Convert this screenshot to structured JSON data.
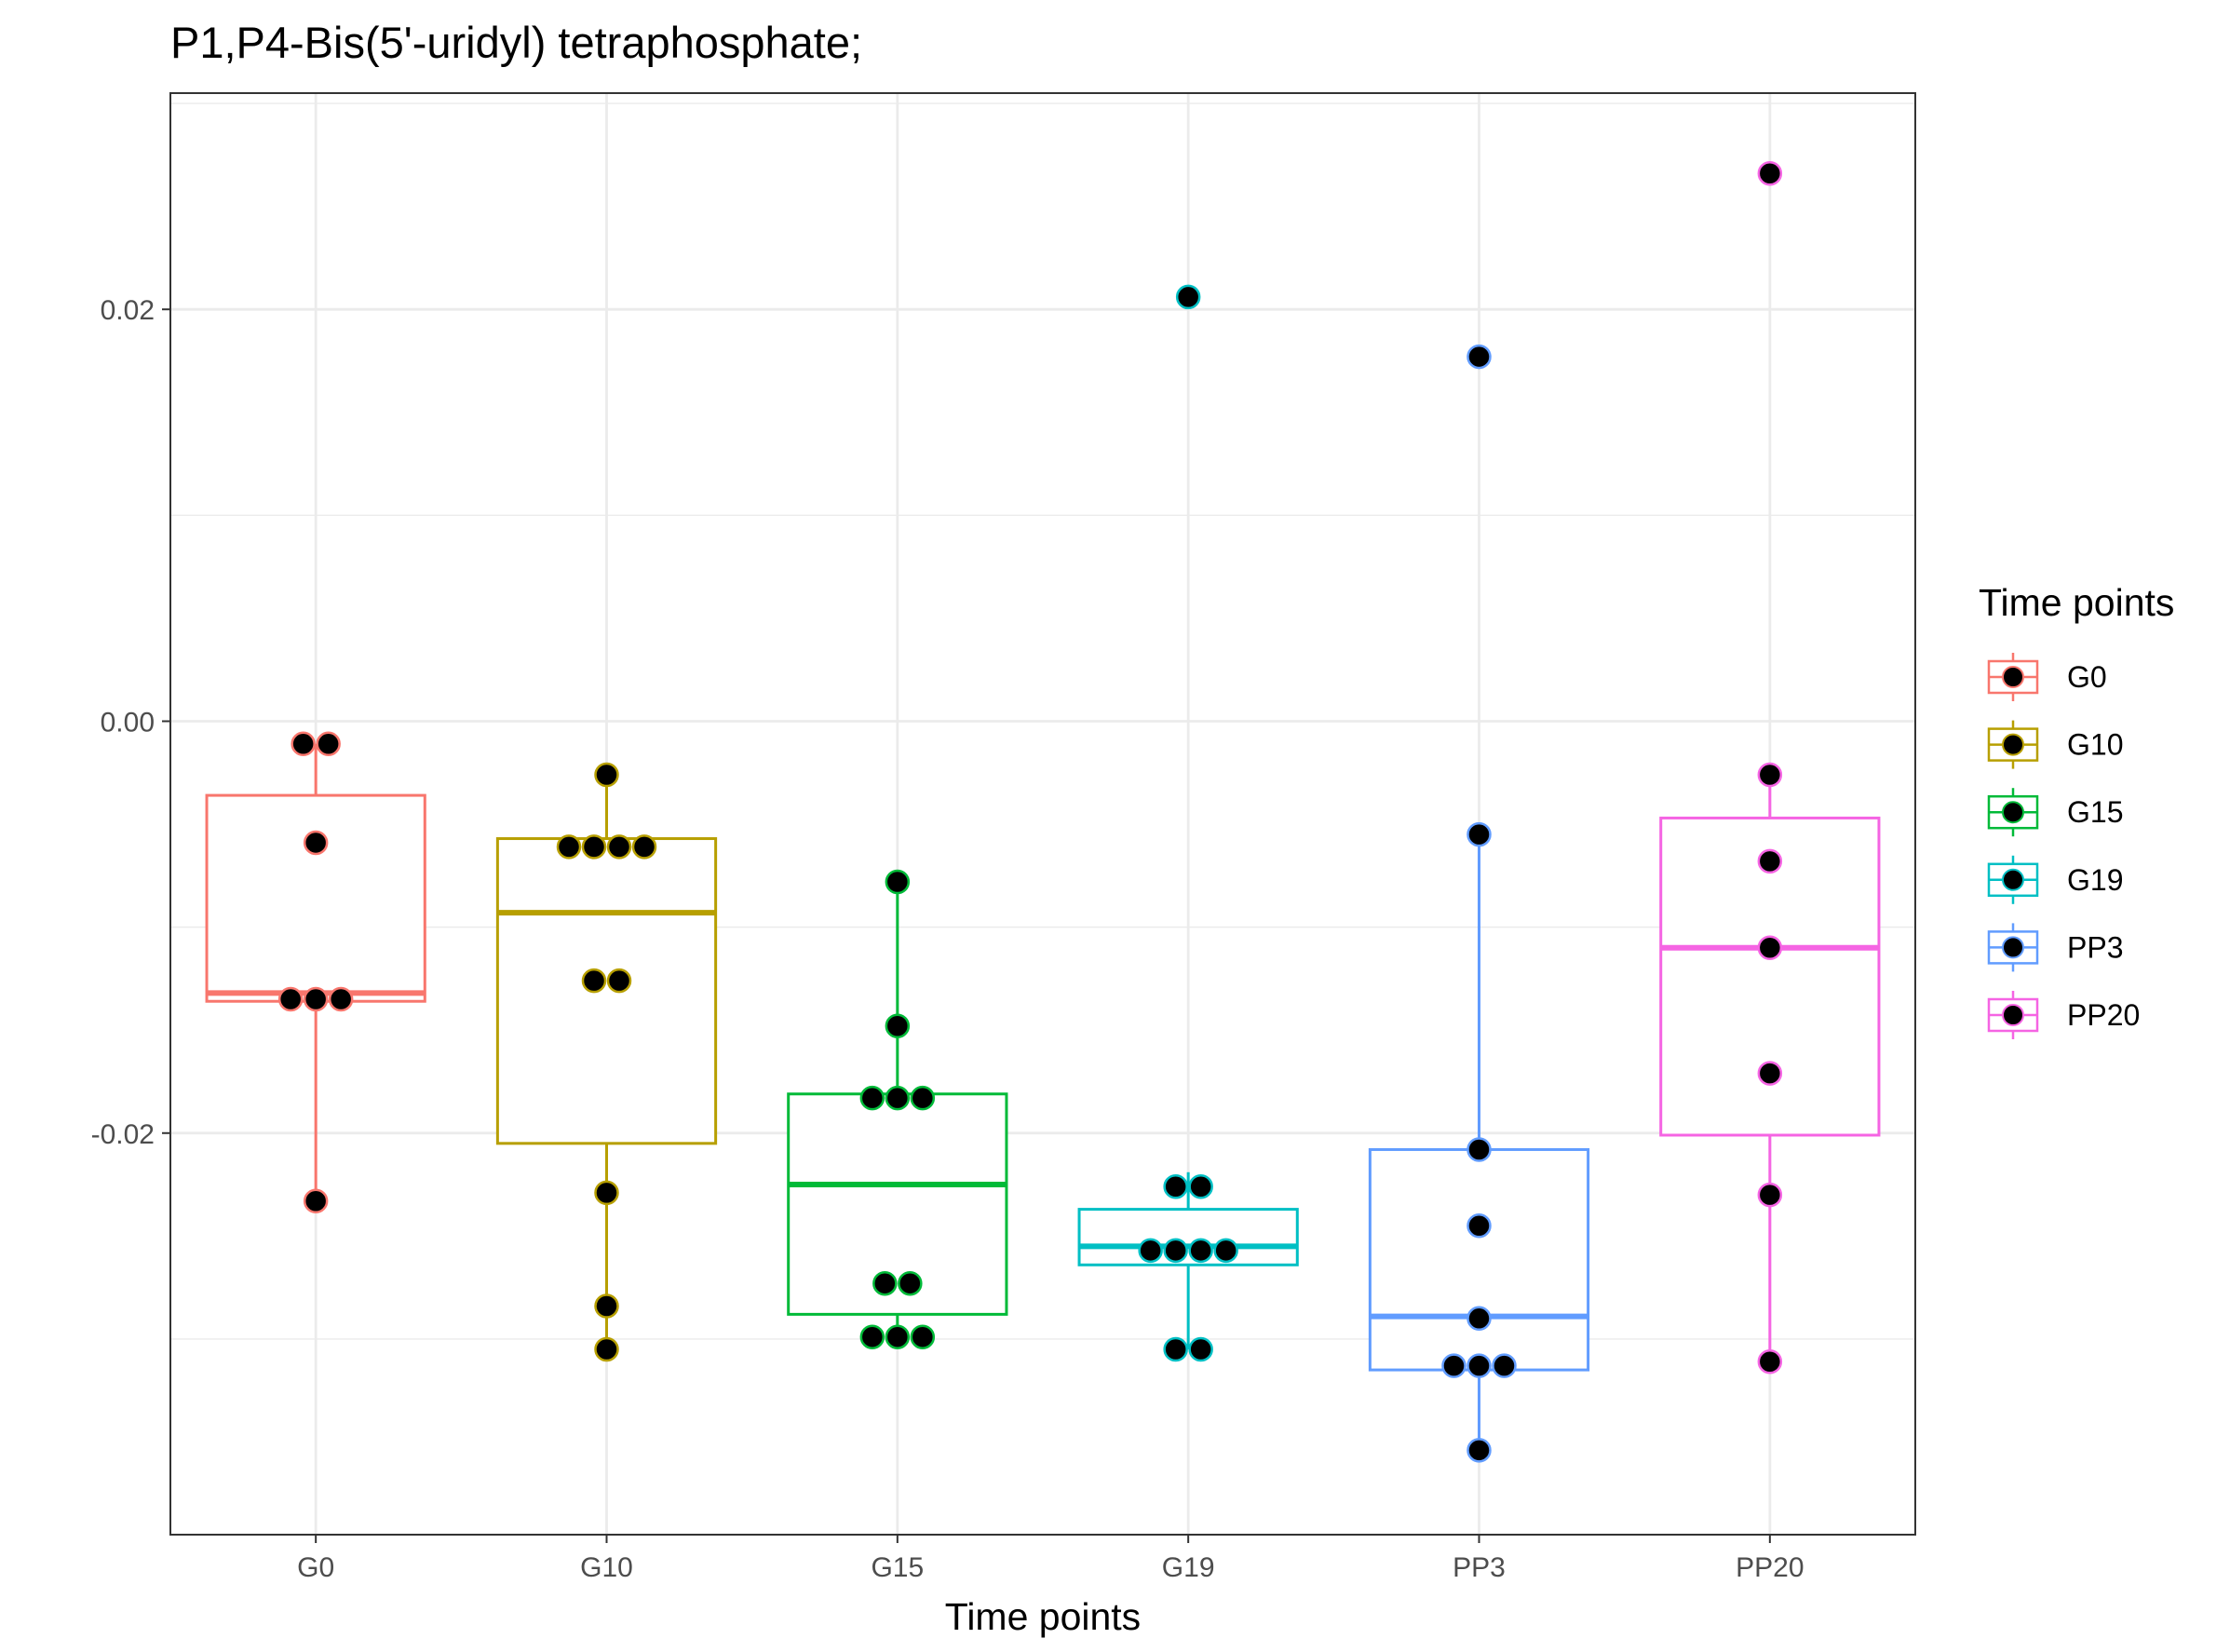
{
  "chart_data": {
    "type": "boxplot",
    "title": "P1,P4-Bis(5'-uridyl) tetraphosphate;",
    "xlabel": "Time points",
    "ylabel": "",
    "ylim": [
      -0.0395,
      0.0305
    ],
    "yticks": [
      -0.02,
      0.0,
      0.02
    ],
    "ytick_labels": [
      "-0.02",
      "0.00",
      "0.02"
    ],
    "grid": true,
    "legend": {
      "title": "Time points",
      "position": "right",
      "entries": [
        "G0",
        "G10",
        "G15",
        "G19",
        "PP3",
        "PP20"
      ]
    },
    "categories": [
      "G0",
      "G10",
      "G15",
      "G19",
      "PP3",
      "PP20"
    ],
    "colors": {
      "G0": "#F8766D",
      "G10": "#B79F00",
      "G15": "#00BA38",
      "G19": "#00BFC4",
      "PP3": "#619CFF",
      "PP20": "#F564E3"
    },
    "point_fill": "#000000",
    "series": [
      {
        "name": "G0",
        "box": {
          "whisker_low": -0.0233,
          "q1": -0.0136,
          "median": -0.0132,
          "q3": -0.0036,
          "whisker_high": -0.0011
        },
        "points": [
          -0.0011,
          -0.0011,
          -0.0059,
          -0.0135,
          -0.0135,
          -0.0135,
          -0.0233
        ]
      },
      {
        "name": "G10",
        "box": {
          "whisker_low": -0.0305,
          "q1": -0.0205,
          "median": -0.0093,
          "q3": -0.0057,
          "whisker_high": -0.0026
        },
        "points": [
          -0.0026,
          -0.0061,
          -0.0061,
          -0.0061,
          -0.0061,
          -0.0126,
          -0.0126,
          -0.0229,
          -0.0284,
          -0.0305
        ]
      },
      {
        "name": "G15",
        "box": {
          "whisker_low": -0.03,
          "q1": -0.0288,
          "median": -0.0225,
          "q3": -0.0181,
          "whisker_high": -0.0078
        },
        "points": [
          -0.0078,
          -0.0148,
          -0.0183,
          -0.0183,
          -0.0183,
          -0.0273,
          -0.0273,
          -0.0299,
          -0.0299,
          -0.0299
        ]
      },
      {
        "name": "G19",
        "box": {
          "whisker_low": -0.0305,
          "q1": -0.0264,
          "median": -0.0255,
          "q3": -0.0237,
          "whisker_high": -0.0219
        },
        "points": [
          0.0206,
          -0.0226,
          -0.0226,
          -0.0257,
          -0.0257,
          -0.0257,
          -0.0257,
          -0.0305,
          -0.0305
        ]
      },
      {
        "name": "PP3",
        "box": {
          "whisker_low": -0.0354,
          "q1": -0.0315,
          "median": -0.0289,
          "q3": -0.0208,
          "whisker_high": -0.0055
        },
        "points": [
          0.0177,
          -0.0055,
          -0.0208,
          -0.0245,
          -0.029,
          -0.0313,
          -0.0313,
          -0.0313,
          -0.0354
        ]
      },
      {
        "name": "PP20",
        "box": {
          "whisker_low": -0.0311,
          "q1": -0.0201,
          "median": -0.011,
          "q3": -0.0047,
          "whisker_high": -0.0026
        },
        "points": [
          0.0266,
          -0.0026,
          -0.0068,
          -0.011,
          -0.0171,
          -0.023,
          -0.0311
        ]
      }
    ]
  }
}
